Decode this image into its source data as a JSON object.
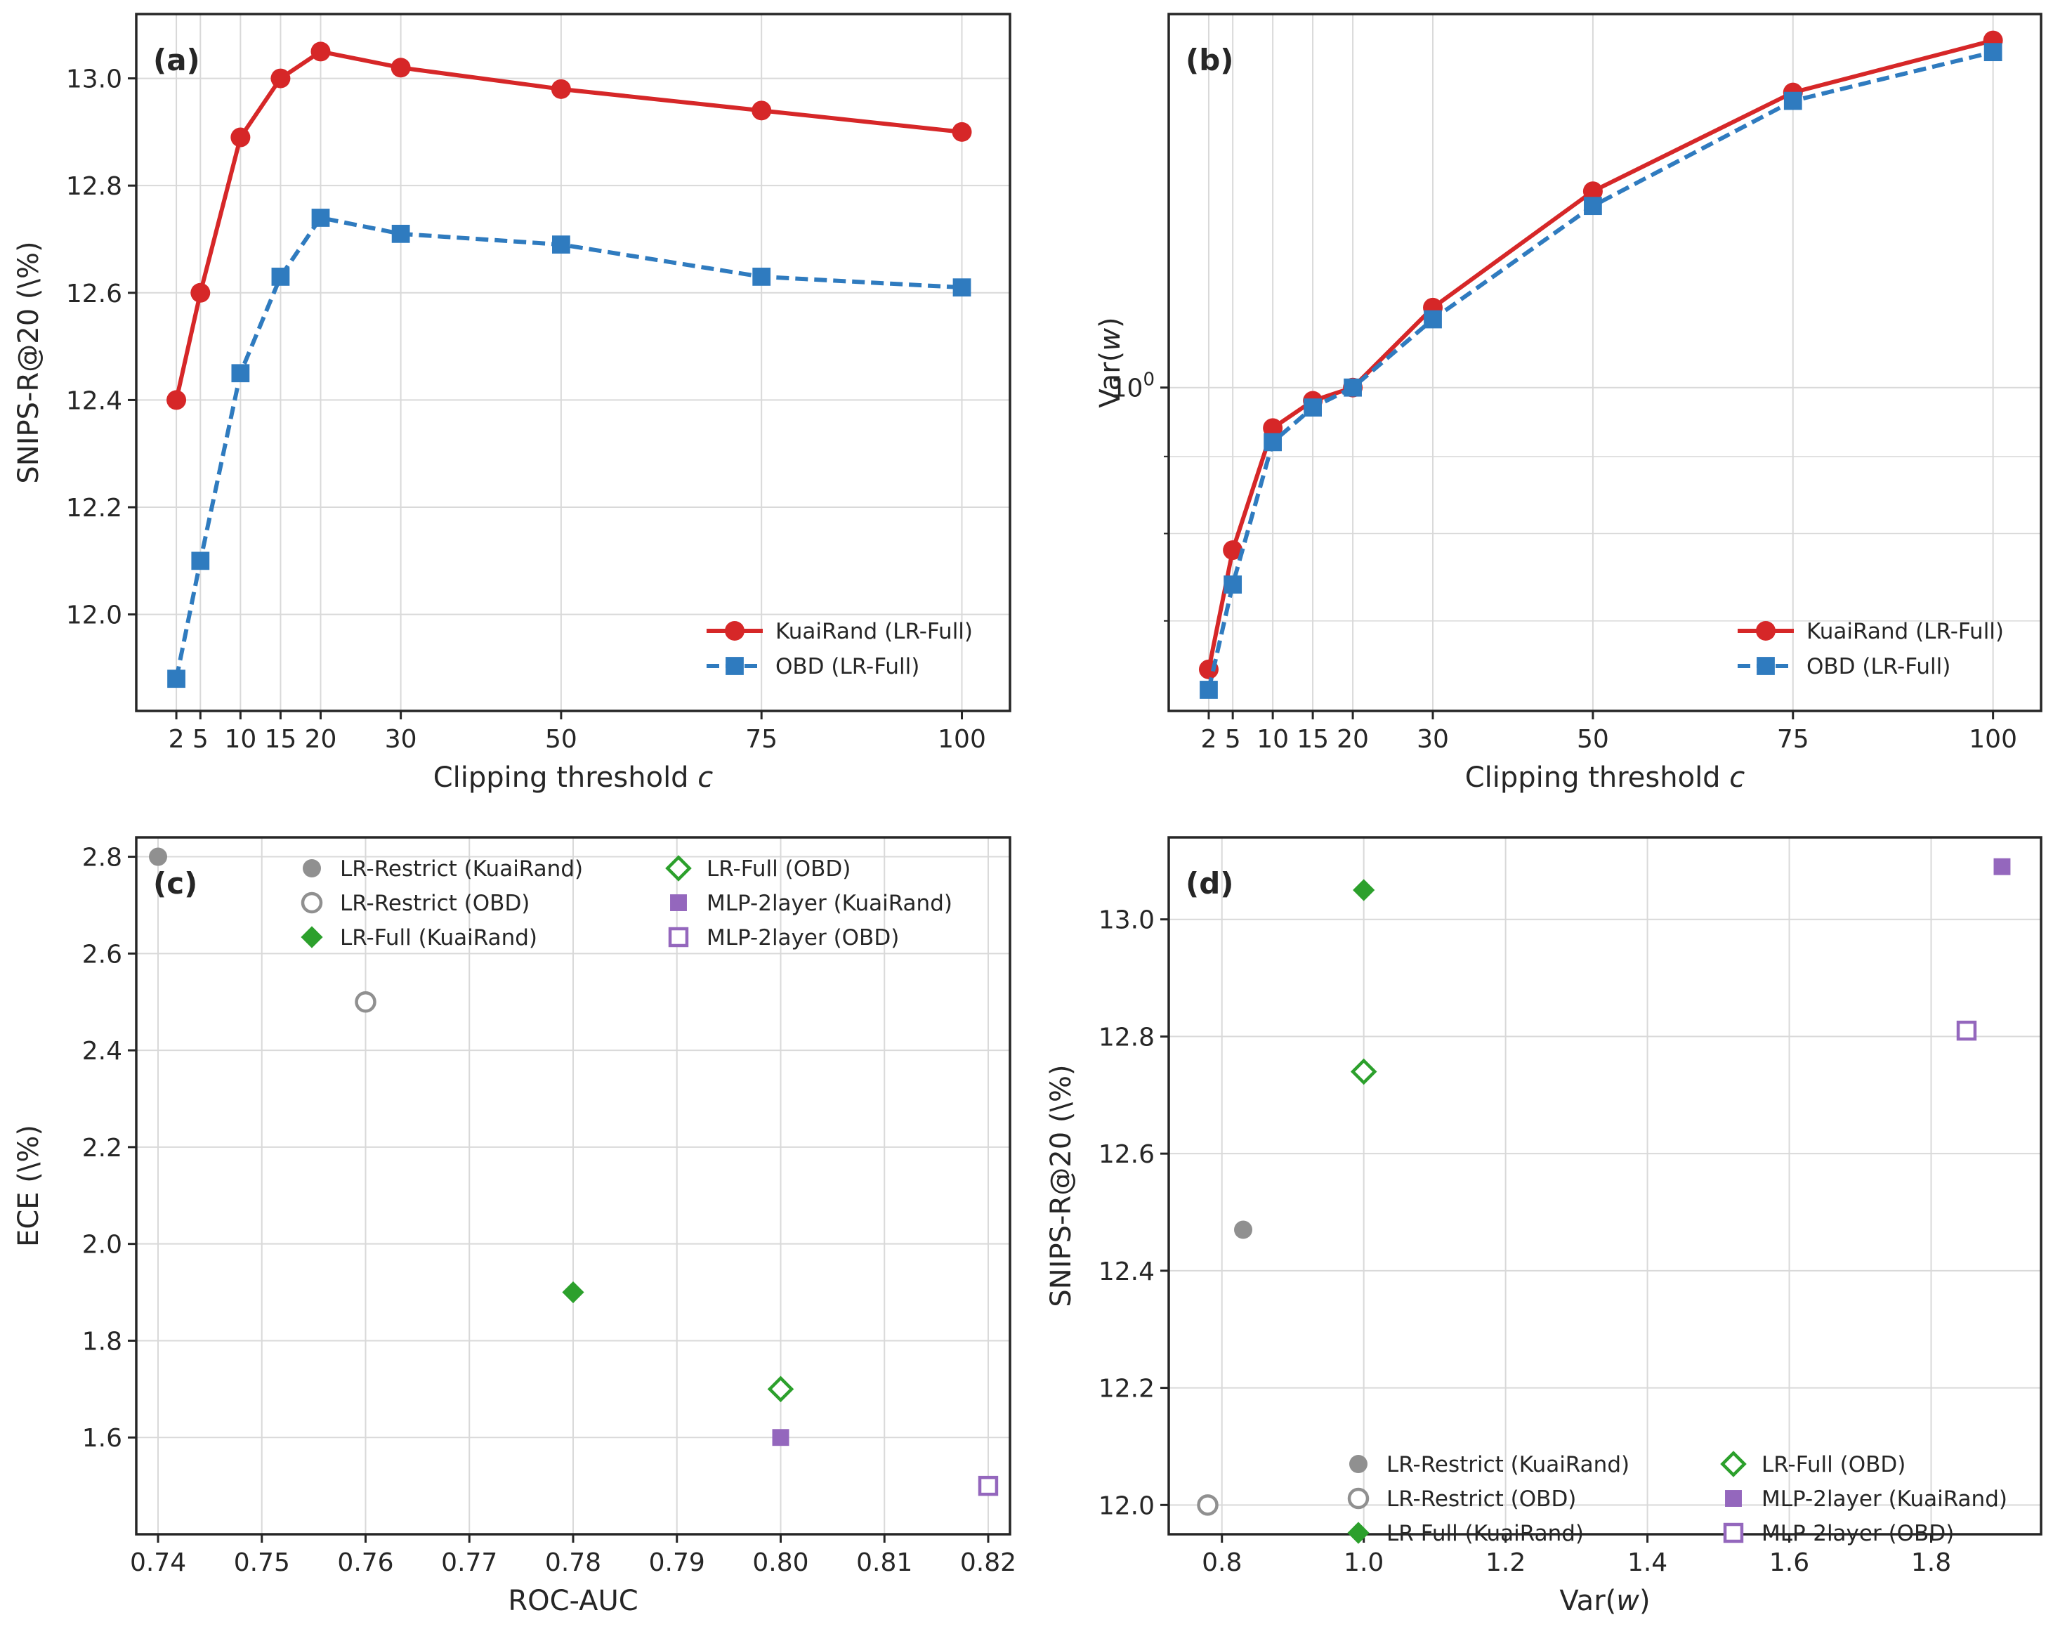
{
  "colors": {
    "red": "#d62728",
    "blue": "#2f7bbf",
    "gray": "#909090",
    "green": "#2ca02c",
    "purple": "#9467bd",
    "grid": "#d9d9d9",
    "axis": "#262626"
  },
  "chart_data": [
    {
      "id": "a",
      "panel_label": "(a)",
      "type": "line",
      "title": "",
      "xlabel": "Clipping threshold c",
      "ylabel": "SNIPS-R@20 (\\%)",
      "xlim": [
        -3,
        106
      ],
      "ylim": [
        11.82,
        13.12
      ],
      "x": [
        2,
        5,
        10,
        15,
        20,
        30,
        50,
        75,
        100
      ],
      "xticks": [
        2,
        5,
        10,
        15,
        20,
        30,
        50,
        75,
        100
      ],
      "xtick_labels": [
        "2",
        "5",
        "10",
        "15",
        "20",
        "30",
        "50",
        "75",
        "100"
      ],
      "yticks": [
        12.0,
        12.2,
        12.4,
        12.6,
        12.8,
        13.0
      ],
      "ytick_labels": [
        "12.0",
        "12.2",
        "12.4",
        "12.6",
        "12.8",
        "13.0"
      ],
      "grid": true,
      "legend_position": "lower-right",
      "series": [
        {
          "name": "KuaiRand (LR-Full)",
          "color": "red",
          "marker": "circle",
          "dash": false,
          "values": [
            12.4,
            12.6,
            12.89,
            13.0,
            13.05,
            13.02,
            12.98,
            12.94,
            12.9
          ]
        },
        {
          "name": "OBD (LR-Full)",
          "color": "blue",
          "marker": "square",
          "dash": true,
          "values": [
            11.88,
            12.1,
            12.45,
            12.63,
            12.74,
            12.71,
            12.69,
            12.63,
            12.61
          ]
        }
      ]
    },
    {
      "id": "b",
      "panel_label": "(b)",
      "type": "line",
      "yscale": "log",
      "title": "",
      "xlabel": "Clipping threshold c",
      "ylabel": "Var(w)",
      "xlim": [
        -3,
        106
      ],
      "ylim": [
        0.61,
        1.77
      ],
      "x": [
        2,
        5,
        10,
        15,
        20,
        30,
        50,
        75,
        100
      ],
      "xticks": [
        2,
        5,
        10,
        15,
        20,
        30,
        50,
        75,
        100
      ],
      "xtick_labels": [
        "2",
        "5",
        "10",
        "15",
        "20",
        "30",
        "50",
        "75",
        "100"
      ],
      "yticks": [
        1.0
      ],
      "ytick_labels": [
        "10^0"
      ],
      "minor_yticks": [
        0.7,
        0.8,
        0.9,
        2,
        3
      ],
      "grid": true,
      "legend_position": "lower-right",
      "series": [
        {
          "name": "KuaiRand (LR-Full)",
          "color": "red",
          "marker": "circle",
          "dash": false,
          "values": [
            0.65,
            0.78,
            0.94,
            0.98,
            1.0,
            1.13,
            1.35,
            1.57,
            1.7
          ]
        },
        {
          "name": "OBD (LR-Full)",
          "color": "blue",
          "marker": "square",
          "dash": true,
          "values": [
            0.63,
            0.74,
            0.92,
            0.97,
            1.0,
            1.11,
            1.32,
            1.55,
            1.67
          ]
        }
      ]
    },
    {
      "id": "c",
      "panel_label": "(c)",
      "type": "scatter",
      "title": "",
      "xlabel": "ROC-AUC",
      "ylabel": "ECE (\\%)",
      "xlim": [
        0.7379,
        0.8221
      ],
      "ylim": [
        1.4,
        2.84
      ],
      "xticks": [
        0.74,
        0.75,
        0.76,
        0.77,
        0.78,
        0.79,
        0.8,
        0.81,
        0.82
      ],
      "xtick_labels": [
        "0.74",
        "0.75",
        "0.76",
        "0.77",
        "0.78",
        "0.79",
        "0.80",
        "0.81",
        "0.82"
      ],
      "yticks": [
        1.6,
        1.8,
        2.0,
        2.2,
        2.4,
        2.6,
        2.8
      ],
      "ytick_labels": [
        "1.6",
        "1.8",
        "2.0",
        "2.2",
        "2.4",
        "2.6",
        "2.8"
      ],
      "grid": true,
      "legend_position": "top",
      "points": [
        {
          "name": "LR-Restrict (KuaiRand)",
          "x": 0.74,
          "y": 2.8,
          "color": "gray",
          "marker": "circle",
          "filled": true
        },
        {
          "name": "LR-Restrict (OBD)",
          "x": 0.76,
          "y": 2.5,
          "color": "gray",
          "marker": "circle",
          "filled": false
        },
        {
          "name": "LR-Full (KuaiRand)",
          "x": 0.78,
          "y": 1.9,
          "color": "green",
          "marker": "diamond",
          "filled": true
        },
        {
          "name": "LR-Full (OBD)",
          "x": 0.8,
          "y": 1.7,
          "color": "green",
          "marker": "diamond",
          "filled": false
        },
        {
          "name": "MLP-2layer (KuaiRand)",
          "x": 0.8,
          "y": 1.6,
          "color": "purple",
          "marker": "square",
          "filled": true
        },
        {
          "name": "MLP-2layer (OBD)",
          "x": 0.82,
          "y": 1.5,
          "color": "purple",
          "marker": "square",
          "filled": false
        }
      ]
    },
    {
      "id": "d",
      "panel_label": "(d)",
      "type": "scatter",
      "title": "",
      "xlabel": "Var(w)",
      "ylabel": "SNIPS-R@20 (\\%)",
      "xlim": [
        0.725,
        1.955
      ],
      "ylim": [
        11.95,
        13.14
      ],
      "xticks": [
        0.8,
        1.0,
        1.2,
        1.4,
        1.6,
        1.8
      ],
      "xtick_labels": [
        "0.8",
        "1.0",
        "1.2",
        "1.4",
        "1.6",
        "1.8"
      ],
      "yticks": [
        12.0,
        12.2,
        12.4,
        12.6,
        12.8,
        13.0
      ],
      "ytick_labels": [
        "12.0",
        "12.2",
        "12.4",
        "12.6",
        "12.8",
        "13.0"
      ],
      "grid": true,
      "legend_position": "lower-center",
      "points": [
        {
          "name": "LR-Restrict (KuaiRand)",
          "x": 0.83,
          "y": 12.47,
          "color": "gray",
          "marker": "circle",
          "filled": true
        },
        {
          "name": "LR-Restrict (OBD)",
          "x": 0.78,
          "y": 12.0,
          "color": "gray",
          "marker": "circle",
          "filled": false
        },
        {
          "name": "LR-Full (KuaiRand)",
          "x": 1.0,
          "y": 13.05,
          "color": "green",
          "marker": "diamond",
          "filled": true
        },
        {
          "name": "LR-Full (OBD)",
          "x": 1.0,
          "y": 12.74,
          "color": "green",
          "marker": "diamond",
          "filled": false
        },
        {
          "name": "MLP-2layer (KuaiRand)",
          "x": 1.9,
          "y": 13.09,
          "color": "purple",
          "marker": "square",
          "filled": true
        },
        {
          "name": "MLP-2layer (OBD)",
          "x": 1.85,
          "y": 12.81,
          "color": "purple",
          "marker": "square",
          "filled": false
        }
      ]
    }
  ]
}
